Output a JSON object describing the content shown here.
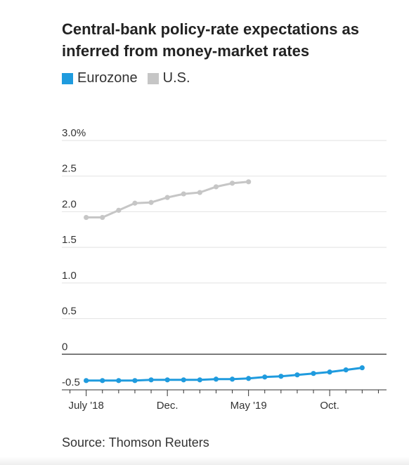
{
  "chart_data": {
    "type": "line",
    "title": "Central-bank policy-rate expectations as inferred from money-market rates",
    "source": "Source: Thomson Reuters",
    "y_tick_labels": [
      "3.0%",
      "2.5",
      "2.0",
      "1.5",
      "1.0",
      "0.5",
      "0",
      "-0.5"
    ],
    "y_tick_values": [
      3.0,
      2.5,
      2.0,
      1.5,
      1.0,
      0.5,
      0,
      -0.5
    ],
    "ylim": [
      -0.5,
      3.0
    ],
    "x_tick_labels": [
      "July '18",
      "Dec.",
      "May '19",
      "Oct."
    ],
    "x_tick_months": [
      6,
      11,
      16,
      21
    ],
    "x_range_months": [
      4.5,
      24.5
    ],
    "grid": true,
    "legend_position": "top-left",
    "series": [
      {
        "name": "Eurozone",
        "color": "#1f9bde",
        "x": [
          6,
          7,
          8,
          9,
          10,
          11,
          12,
          13,
          14,
          15,
          16,
          17,
          18,
          19,
          20,
          21,
          22,
          23
        ],
        "values": [
          -0.37,
          -0.37,
          -0.37,
          -0.37,
          -0.36,
          -0.36,
          -0.36,
          -0.36,
          -0.35,
          -0.35,
          -0.34,
          -0.32,
          -0.31,
          -0.29,
          -0.27,
          -0.25,
          -0.22,
          -0.19
        ]
      },
      {
        "name": "U.S.",
        "color": "#c6c6c6",
        "x": [
          6,
          7,
          8,
          9,
          10,
          11,
          12,
          13,
          14,
          15,
          16
        ],
        "values": [
          1.92,
          1.92,
          2.02,
          2.12,
          2.13,
          2.2,
          2.25,
          2.27,
          2.35,
          2.4,
          2.42
        ]
      }
    ]
  }
}
